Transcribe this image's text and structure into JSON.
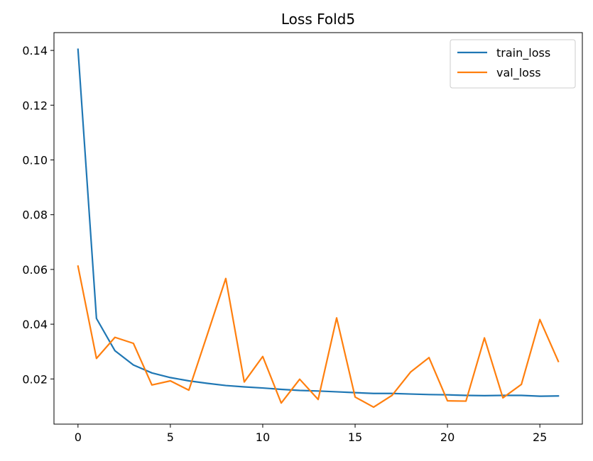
{
  "chart_data": {
    "type": "line",
    "title": "Loss Fold5",
    "xlabel": "",
    "ylabel": "",
    "xlim": [
      -1.3,
      27.3
    ],
    "ylim": [
      0.0035,
      0.1465
    ],
    "xticks": [
      0,
      5,
      10,
      15,
      20,
      25
    ],
    "yticks": [
      0.02,
      0.04,
      0.06,
      0.08,
      0.1,
      0.12,
      0.14
    ],
    "ytick_labels": [
      "0.02",
      "0.04",
      "0.06",
      "0.08",
      "0.10",
      "0.12",
      "0.14"
    ],
    "xtick_labels": [
      "0",
      "5",
      "10",
      "15",
      "20",
      "25"
    ],
    "grid": false,
    "legend_position": "top-right",
    "x": [
      0,
      1,
      2,
      3,
      4,
      5,
      6,
      7,
      8,
      9,
      10,
      11,
      12,
      13,
      14,
      15,
      16,
      17,
      18,
      19,
      20,
      21,
      22,
      23,
      24,
      25,
      26
    ],
    "series": [
      {
        "name": "train_loss",
        "color": "#1f77b4",
        "values": [
          0.1404,
          0.0421,
          0.0303,
          0.0251,
          0.0222,
          0.0205,
          0.0193,
          0.0184,
          0.0176,
          0.0171,
          0.0167,
          0.0162,
          0.0158,
          0.0156,
          0.0153,
          0.015,
          0.0147,
          0.0147,
          0.0145,
          0.0143,
          0.0142,
          0.014,
          0.0139,
          0.014,
          0.014,
          0.0137,
          0.0138
        ]
      },
      {
        "name": "val_loss",
        "color": "#ff7f0e",
        "values": [
          0.0612,
          0.0275,
          0.0352,
          0.033,
          0.0178,
          0.0193,
          0.0159,
          0.0362,
          0.0567,
          0.0189,
          0.0282,
          0.0112,
          0.0199,
          0.0125,
          0.0423,
          0.0134,
          0.0097,
          0.014,
          0.0225,
          0.0278,
          0.012,
          0.0119,
          0.035,
          0.0131,
          0.018,
          0.0417,
          0.0264
        ]
      }
    ]
  }
}
